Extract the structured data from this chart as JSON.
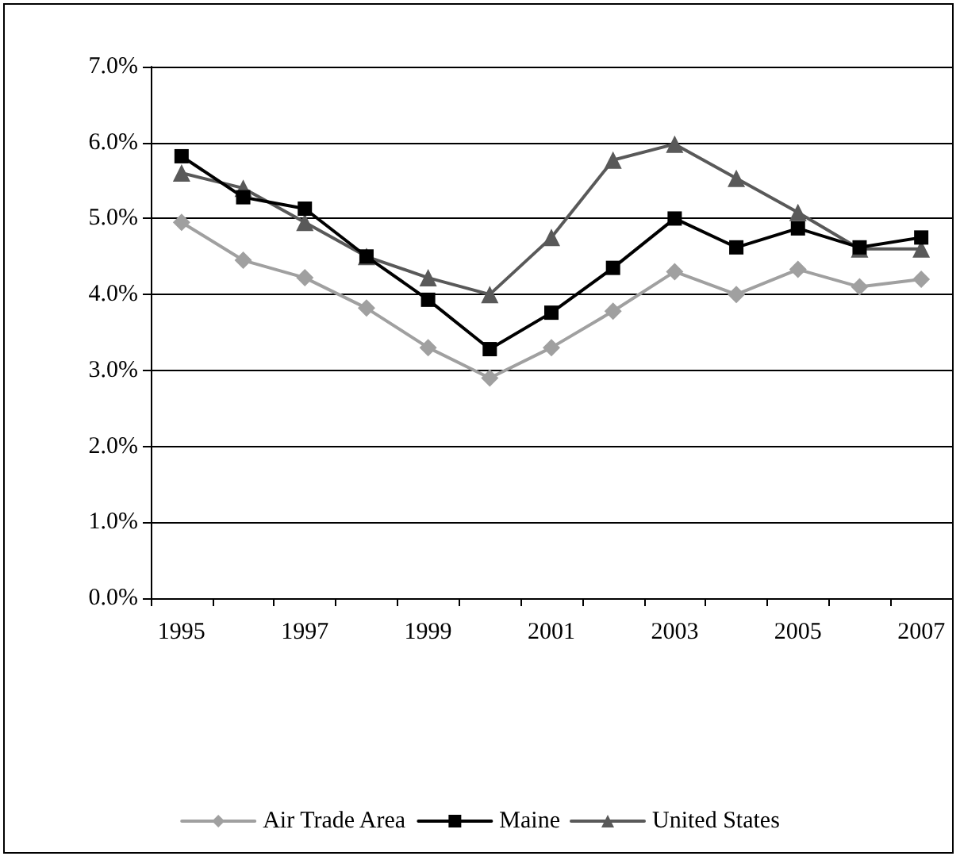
{
  "chart_data": {
    "type": "line",
    "categories": [
      "1995",
      null,
      "1997",
      null,
      "1999",
      null,
      "2001",
      null,
      "2003",
      null,
      "2005",
      null,
      "2007"
    ],
    "series": [
      {
        "name": "Air Trade Area",
        "color": "#a0a0a0",
        "marker": "diamond",
        "values": [
          4.95,
          4.45,
          4.22,
          3.82,
          3.3,
          2.9,
          3.3,
          3.78,
          4.3,
          4.0,
          4.33,
          4.1,
          4.2
        ]
      },
      {
        "name": "Maine",
        "color": "#000000",
        "marker": "square",
        "values": [
          5.82,
          5.28,
          5.13,
          4.5,
          3.93,
          3.28,
          3.76,
          4.35,
          5.0,
          4.62,
          4.87,
          4.62,
          4.75
        ]
      },
      {
        "name": "United States",
        "color": "#595959",
        "marker": "triangle",
        "values": [
          5.6,
          5.4,
          4.95,
          4.5,
          4.22,
          4.0,
          4.75,
          5.77,
          5.98,
          5.53,
          5.08,
          4.6,
          4.6
        ]
      }
    ],
    "ylim": [
      0,
      7
    ],
    "yticks": [
      {
        "value": 0,
        "label": "0.0%"
      },
      {
        "value": 1,
        "label": "1.0%"
      },
      {
        "value": 2,
        "label": "2.0%"
      },
      {
        "value": 3,
        "label": "3.0%"
      },
      {
        "value": 4,
        "label": "4.0%"
      },
      {
        "value": 5,
        "label": "5.0%"
      },
      {
        "value": 6,
        "label": "6.0%"
      },
      {
        "value": 7,
        "label": "7.0%"
      }
    ],
    "grid": "y",
    "legend": "bottom",
    "line_style": "solid"
  }
}
